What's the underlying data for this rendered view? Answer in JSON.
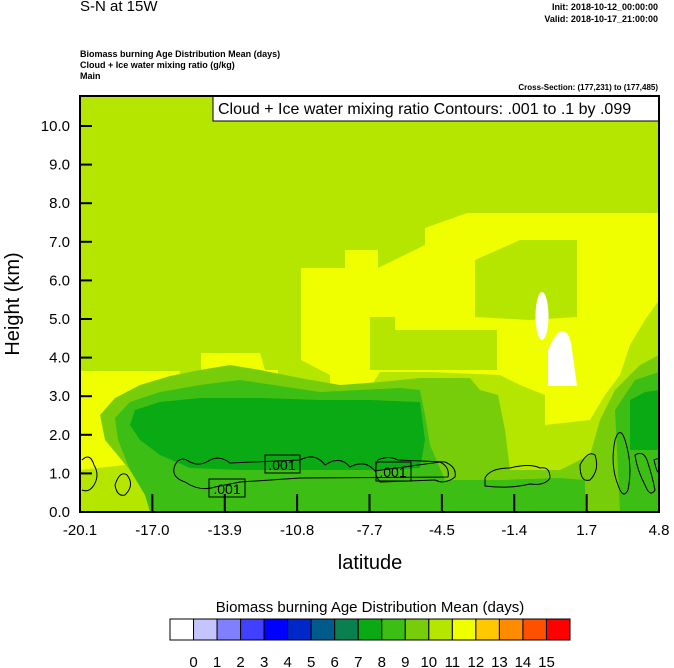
{
  "header": {
    "title": "S-N at 15W",
    "init": "Init: 2018-10-12_00:00:00",
    "valid": "Valid: 2018-10-17_21:00:00",
    "fields": [
      "Biomass burning Age Distribution Mean   (days)",
      "Cloud + Ice water mixing ratio   (g/kg)",
      "Main"
    ],
    "cross_section": "Cross-Section: (177,231) to (177,485)"
  },
  "chart_data": {
    "type": "heatmap",
    "subtype": "filled contour cross-section with line contour overlay",
    "xlabel": "latitude",
    "ylabel": "Height (km)",
    "xlim": [
      -20.1,
      4.8
    ],
    "ylim": [
      0.0,
      10.8
    ],
    "x_ticks": [
      "-20.1",
      "-17.0",
      "-13.9",
      "-10.8",
      "-7.7",
      "-4.5",
      "-1.4",
      "1.7",
      "4.8"
    ],
    "y_ticks": [
      "0.0",
      "1.0",
      "2.0",
      "3.0",
      "4.0",
      "5.0",
      "6.0",
      "7.0",
      "8.0",
      "9.0",
      "10.0"
    ],
    "contour_legend": "Cloud + Ice water mixing ratio Contours: .001 to .1 by .099",
    "contour_labels": [
      ".001",
      ".001",
      ".001"
    ],
    "colorbar": {
      "title": "Biomass burning Age Distribution Mean  (days)",
      "levels": [
        "0",
        "1",
        "2",
        "3",
        "4",
        "5",
        "6",
        "7",
        "8",
        "9",
        "10",
        "11",
        "12",
        "13",
        "14",
        "15"
      ],
      "colors": [
        "#ffffff",
        "#c4c4ff",
        "#8080ff",
        "#4040ff",
        "#0000ff",
        "#0028c8",
        "#005a8c",
        "#0a8050",
        "#0aaa14",
        "#3cbe14",
        "#78cd0a",
        "#b4e600",
        "#f0ff00",
        "#ffc800",
        "#ff8c00",
        "#ff5000",
        "#ff0000"
      ]
    }
  }
}
